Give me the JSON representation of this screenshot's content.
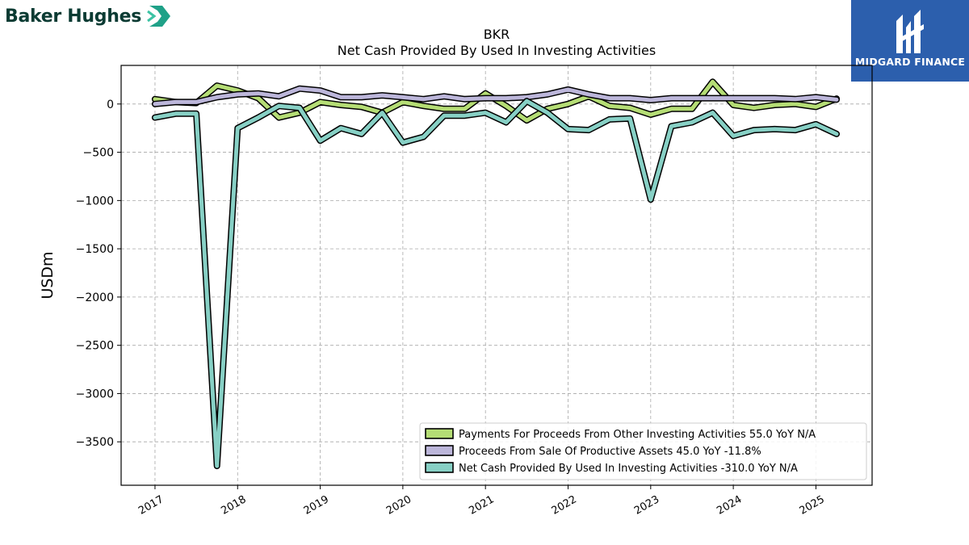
{
  "header": {
    "brand_name": "Baker Hughes",
    "badge_label": "MIDGARD FINANCE"
  },
  "colors": {
    "payments": "#b5dd75",
    "proceeds": "#bcb6da",
    "net": "#87d0c5",
    "brand_teal": "#1fa188",
    "badge_bg": "#2c5fad"
  },
  "chart_data": {
    "type": "line",
    "title": "BKR",
    "subtitle": "Net Cash Provided By Used In Investing Activities",
    "xlabel": "",
    "ylabel": "USDm",
    "xlim": [
      2016.59,
      2025.68
    ],
    "ylim": [
      -3950,
      400
    ],
    "x_ticks": [
      "2017",
      "2018",
      "2019",
      "2020",
      "2021",
      "2022",
      "2023",
      "2024",
      "2025"
    ],
    "y_ticks": [
      0,
      -500,
      -1000,
      -1500,
      -2000,
      -2500,
      -3000,
      -3500
    ],
    "y_tick_labels": [
      "0",
      "−500",
      "−1000",
      "−1500",
      "−2000",
      "−2500",
      "−3000",
      "−3500"
    ],
    "grid": true,
    "legend_position": "lower-right",
    "x": [
      2017.0,
      2017.25,
      2017.5,
      2017.75,
      2018.0,
      2018.25,
      2018.5,
      2018.75,
      2019.0,
      2019.25,
      2019.5,
      2019.75,
      2020.0,
      2020.25,
      2020.5,
      2020.75,
      2021.0,
      2021.25,
      2021.5,
      2021.75,
      2022.0,
      2022.25,
      2022.5,
      2022.75,
      2023.0,
      2023.25,
      2023.5,
      2023.75,
      2024.0,
      2024.25,
      2024.5,
      2024.75,
      2025.0,
      2025.25
    ],
    "series": [
      {
        "name": "Payments For Proceeds From Other Investing Activities",
        "legend": "Payments For Proceeds From Other Investing Activities  55.0 YoY N/A",
        "values": [
          50,
          20,
          10,
          190,
          140,
          60,
          -140,
          -90,
          20,
          -10,
          -30,
          -90,
          20,
          -20,
          -50,
          -50,
          110,
          -20,
          -170,
          -50,
          0,
          80,
          -20,
          -40,
          -110,
          -50,
          -50,
          230,
          -10,
          -40,
          -10,
          0,
          -30,
          55
        ]
      },
      {
        "name": "Proceeds From Sale Of Productive Assets",
        "legend": "Proceeds From Sale Of Productive Assets  45.0 YoY -11.8%",
        "values": [
          0,
          20,
          20,
          70,
          100,
          110,
          80,
          160,
          140,
          70,
          70,
          90,
          70,
          50,
          80,
          50,
          60,
          60,
          70,
          100,
          150,
          100,
          60,
          60,
          40,
          60,
          60,
          60,
          60,
          60,
          60,
          50,
          70,
          45
        ]
      },
      {
        "name": "Net Cash Provided By Used In Investing Activities",
        "legend": "Net Cash Provided By Used In Investing Activities  -310.0 YoY N/A",
        "values": [
          -140,
          -100,
          -100,
          -3750,
          -250,
          -140,
          -20,
          -40,
          -380,
          -250,
          -310,
          -90,
          -400,
          -340,
          -120,
          -120,
          -90,
          -190,
          30,
          -90,
          -260,
          -270,
          -160,
          -150,
          -990,
          -230,
          -190,
          -90,
          -330,
          -270,
          -260,
          -270,
          -210,
          -310
        ]
      }
    ]
  }
}
